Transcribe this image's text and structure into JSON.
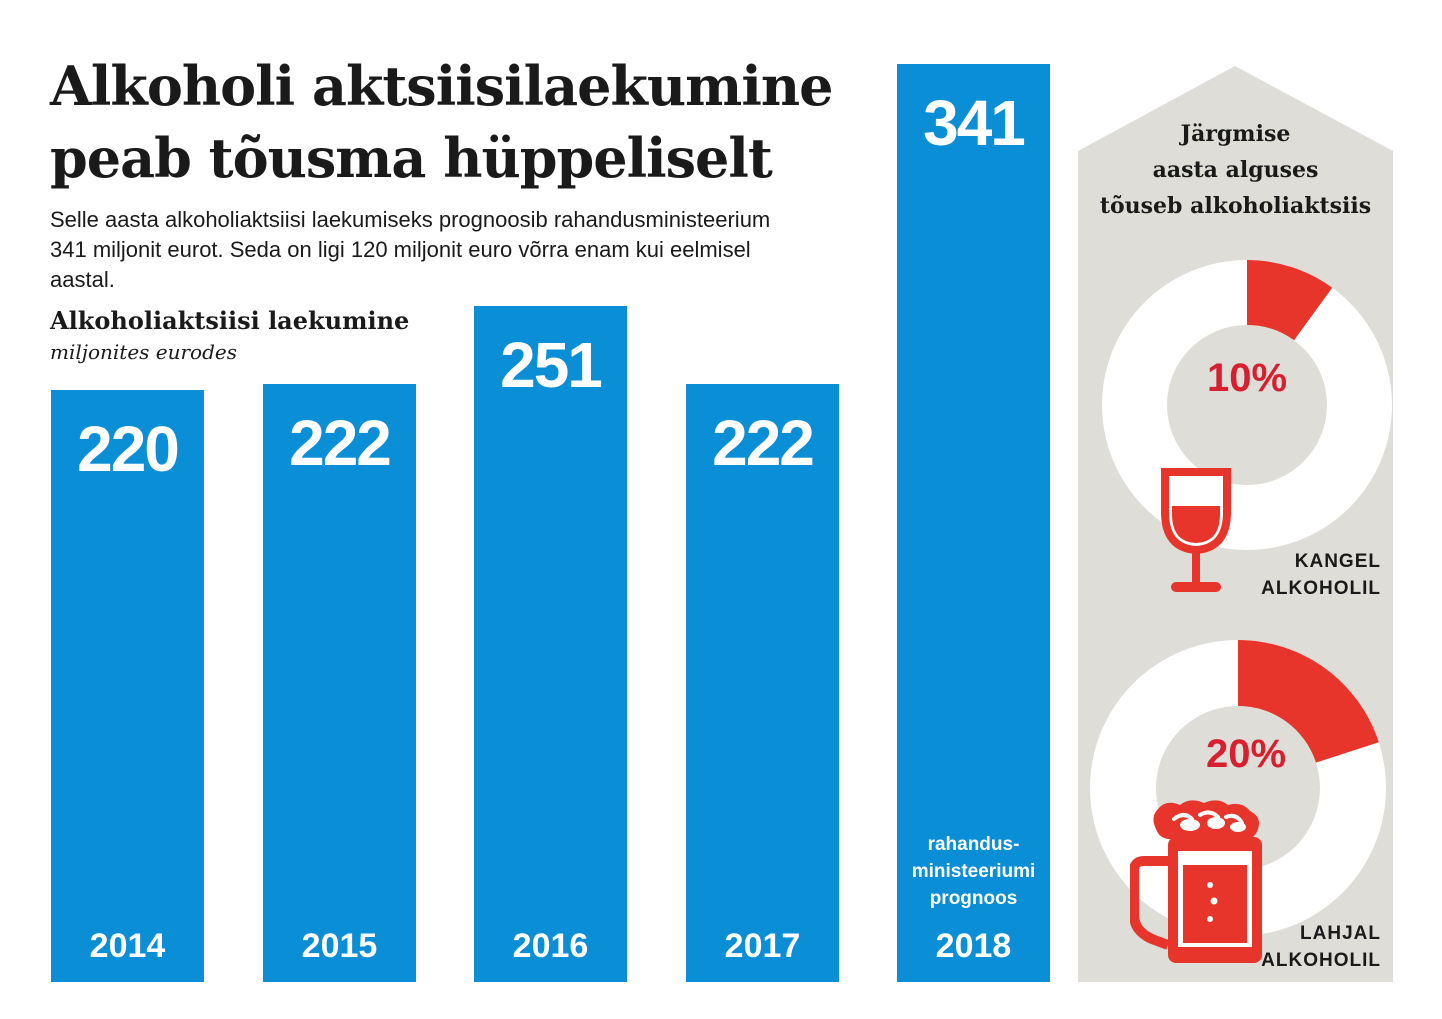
{
  "title_line1": "Alkoholi aktsiisilaekumine",
  "title_line2": "peab tõusma hüppeliselt",
  "intro_line1": "Selle aasta alkoholiaktsiisi laekumiseks prognoosib rahandusministeerium",
  "intro_line2": "341 miljonit eurot. Seda on ligi 120 miljonit euro võrra enam kui eelmisel",
  "intro_line3": "aastal.",
  "chart_data": [
    {
      "type": "bar",
      "title": "Alkoholiaktsiisi laekumine",
      "subtitle": "miljonites eurodes",
      "categories": [
        "2014",
        "2015",
        "2016",
        "2017",
        "2018"
      ],
      "values": [
        220,
        222,
        251,
        222,
        341
      ],
      "annotations": [
        {
          "category": "2018",
          "text_lines": [
            "rahandus-",
            "ministeeriumi",
            "prognoos"
          ]
        }
      ],
      "color": "#0a8fd6"
    },
    {
      "type": "pie",
      "title_lines": [
        "Järgmise",
        "aasta alguses",
        "tõuseb alkoholiaktsiis"
      ],
      "items": [
        {
          "label_lines": [
            "KANGEL",
            "ALKOHOLIL"
          ],
          "value_label": "10%",
          "fraction": 0.1,
          "icon": "wine-glass-icon"
        },
        {
          "label_lines": [
            "LAHJAL",
            "ALKOHOLIL"
          ],
          "value_label": "20%",
          "fraction": 0.2,
          "icon": "beer-mug-icon"
        }
      ],
      "accent_color": "#e8352b",
      "text_color": "#d81f2f",
      "panel_color": "#deddd7"
    }
  ]
}
